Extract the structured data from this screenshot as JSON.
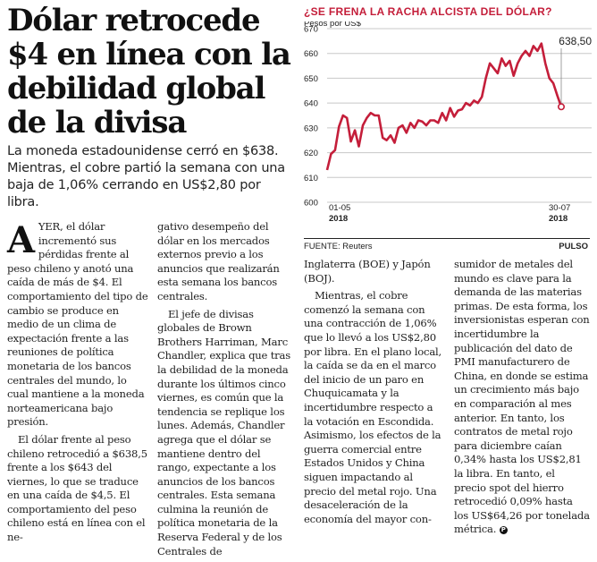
{
  "article": {
    "headline": "Dólar retrocede $4 en línea con la debilidad global de la divisa",
    "subhead": "La moneda estadounidense cerró en $638. Mientras, el cobre partió la semana con una baja de 1,06% cerrando en US$2,80 por libra.",
    "dropcap": "A",
    "col1": [
      "YER, el dólar incrementó sus pérdidas frente al peso chileno y anotó una caída de más de $4. El comportamiento del tipo de cambio se produce en medio de un clima de expectación frente a las reuniones de política monetaria de los bancos centrales del mundo, lo cual mantiene a la moneda norteamericana bajo presión.",
      "El dólar frente al peso chileno retrocedió a $638,5 frente a los $643 del viernes, lo que se traduce en una caída de $4,5. El comportamiento del peso chileno está en línea con el ne-"
    ],
    "col2": [
      "gativo desempeño del dólar en los mercados externos previo a los anuncios que realizarán esta semana los bancos centrales.",
      "El jefe de divisas globales de Brown Brothers Harriman, Marc Chandler, explica que tras la debilidad de la moneda durante los últimos cinco viernes, es común que la tendencia se replique los lunes. Además, Chandler agrega que el dólar se mantiene dentro del rango, expectante a los anuncios de los bancos centrales. Esta semana culmina la reunión de política monetaria de la Reserva Federal y de los Centrales de"
    ],
    "col3": [
      "Inglaterra (BOE) y Japón (BOJ).",
      "Mientras, el cobre comenzó la semana con una contracción de 1,06% que lo llevó a los US$2,80 por libra. En el plano local, la caída se da en el marco del inicio de un paro en Chuquicamata y la incertidumbre respecto a la votación en Escondida. Asimismo, los efectos de la guerra comercial entre Estados Unidos y China siguen impactando al precio del metal rojo. Una desaceleración de la economía del mayor con-"
    ],
    "col4": [
      "sumidor de metales del mundo es clave para la demanda de las materias primas. De esta forma, los inversionistas esperan con incertidumbre la publicación del dato de PMI manufacturero de China, en donde se estima un crecimiento más bajo en comparación al mes anterior. En tanto, los contratos de metal rojo para diciembre caían 0,34% hasta los US$2,81 la libra. En tanto, el precio spot del hierro retrocedió 0,09% hasta los US$64,26 por tonelada métrica."
    ],
    "endmark": "P"
  },
  "chart_data": {
    "type": "line",
    "title": "¿SE FRENA LA RACHA ALCISTA DEL DÓLAR?",
    "ylabel": "Pesos por US$",
    "ylim": [
      600,
      670
    ],
    "yticks": [
      600,
      610,
      620,
      630,
      640,
      650,
      660,
      670
    ],
    "xtick_labels": [
      {
        "line1": "01-05",
        "line2": "2018"
      },
      {
        "line1": "30-07",
        "line2": "2018"
      }
    ],
    "end_label": "638,50",
    "color": "#c41e3a",
    "grid": true,
    "values": [
      613,
      619.5,
      621,
      630.5,
      635,
      634,
      624.5,
      629,
      622.5,
      631,
      634,
      636,
      635,
      635,
      626,
      625,
      627,
      624,
      630,
      631,
      628,
      632,
      630,
      633,
      632.5,
      631,
      633,
      633,
      632,
      636,
      633,
      638,
      634.5,
      637,
      637.5,
      640,
      639,
      641,
      640,
      642.5,
      650,
      656,
      654,
      652,
      658,
      655,
      657,
      651,
      656,
      659,
      661,
      659,
      663,
      661,
      664,
      656,
      650,
      648,
      643,
      638.5
    ],
    "source": "FUENTE: Reuters",
    "brand": "PULSO"
  }
}
